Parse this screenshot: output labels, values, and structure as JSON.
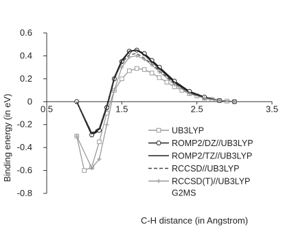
{
  "chart_data": {
    "type": "line",
    "xlabel": "C-H distance (in Angstrom)",
    "ylabel": "Binding energy (in eV)",
    "xlim": [
      0.5,
      3.5
    ],
    "ylim": [
      -0.8,
      0.6
    ],
    "x_ticks": [
      "0.5",
      "1.5",
      "2.5",
      "3.5"
    ],
    "x_tick_values": [
      0.5,
      1.5,
      2.5,
      3.5
    ],
    "y_ticks": [
      "0.6",
      "0.4",
      "0.2",
      "0",
      "-0.2",
      "-0.4",
      "-0.6",
      "-0.8"
    ],
    "y_tick_values": [
      0.6,
      0.4,
      0.2,
      0,
      -0.2,
      -0.4,
      -0.6,
      -0.8
    ],
    "grid": false,
    "legend_position": "right",
    "legend_extra": "G2MS",
    "series": [
      {
        "name": "UB3LYP",
        "color": "#9a9a9a",
        "dash": "",
        "marker": "square",
        "x": [
          0.9,
          1.0,
          1.1,
          1.2,
          1.3,
          1.4,
          1.5,
          1.6,
          1.7,
          1.8,
          1.9,
          2.0,
          2.1,
          2.2,
          2.3,
          2.4,
          2.5,
          2.6,
          2.7,
          2.8,
          2.9,
          3.0
        ],
        "y": [
          -0.3,
          -0.6,
          -0.57,
          -0.35,
          -0.1,
          0.1,
          0.2,
          0.27,
          0.29,
          0.28,
          0.25,
          0.21,
          0.17,
          0.13,
          0.1,
          0.07,
          0.05,
          0.03,
          0.02,
          0.01,
          0.005,
          0.0
        ]
      },
      {
        "name": "ROMP2/DZ//UB3LYP",
        "color": "#222222",
        "dash": "",
        "marker": "circle",
        "x": [
          0.9,
          1.1,
          1.2,
          1.3,
          1.4,
          1.5,
          1.6,
          1.7,
          1.8,
          1.9,
          2.0,
          2.2,
          2.4,
          2.6,
          2.8,
          3.0
        ],
        "y": [
          0.0,
          -0.29,
          -0.25,
          -0.05,
          0.2,
          0.35,
          0.44,
          0.45,
          0.42,
          0.36,
          0.3,
          0.18,
          0.09,
          0.04,
          0.01,
          0.0
        ]
      },
      {
        "name": "ROMP2/TZ//UB3LYP",
        "color": "#222222",
        "dash": "",
        "marker": "none",
        "x": [
          0.9,
          1.1,
          1.2,
          1.3,
          1.4,
          1.5,
          1.6,
          1.7,
          1.8,
          1.9,
          2.0,
          2.2,
          2.4,
          2.6,
          2.8,
          3.0
        ],
        "y": [
          0.0,
          -0.28,
          -0.24,
          -0.04,
          0.21,
          0.36,
          0.44,
          0.45,
          0.41,
          0.35,
          0.29,
          0.17,
          0.08,
          0.03,
          0.01,
          0.0
        ]
      },
      {
        "name": "RCCSD//UB3LYP",
        "color": "#444444",
        "dash": "5 3",
        "marker": "none",
        "x": [
          0.9,
          1.1,
          1.2,
          1.3,
          1.4,
          1.5,
          1.6,
          1.7,
          1.8,
          1.9,
          2.0,
          2.2,
          2.4,
          2.6,
          2.8,
          3.0
        ],
        "y": [
          0.0,
          -0.27,
          -0.23,
          -0.03,
          0.2,
          0.34,
          0.41,
          0.42,
          0.38,
          0.33,
          0.27,
          0.16,
          0.08,
          0.03,
          0.01,
          0.0
        ]
      },
      {
        "name": "RCCSD(T)//UB3LYP",
        "color": "#9a9a9a",
        "dash": "",
        "marker": "cross",
        "x": [
          0.9,
          1.1,
          1.2,
          1.3,
          1.4,
          1.5,
          1.6,
          1.7,
          1.8,
          1.9,
          2.0,
          2.2,
          2.4,
          2.6,
          2.8,
          3.0
        ],
        "y": [
          -0.3,
          -0.58,
          -0.5,
          -0.2,
          0.1,
          0.3,
          0.39,
          0.4,
          0.37,
          0.32,
          0.26,
          0.15,
          0.07,
          0.03,
          0.01,
          0.0
        ]
      }
    ]
  }
}
